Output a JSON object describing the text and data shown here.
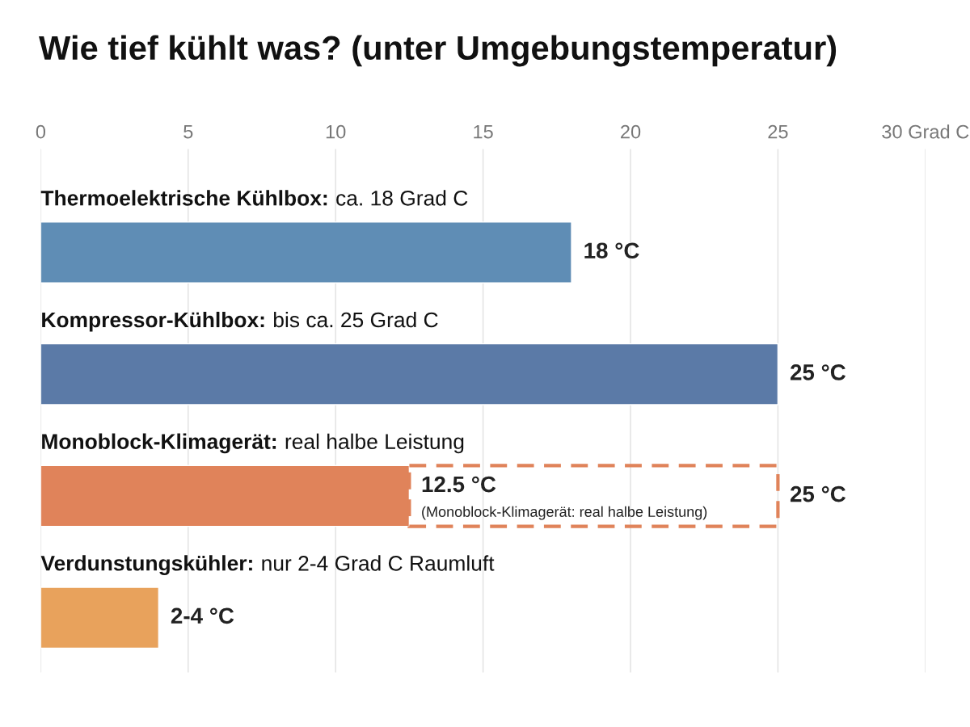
{
  "chart_data": {
    "type": "bar",
    "orientation": "horizontal",
    "stacked": true,
    "title": "Wie tief kühlt was? (unter Umgebungstemperatur)",
    "categories": [
      "Thermoelektrische Kühlbox: ca. 18 Grad C",
      "Kompressor-Kühlbox: bis ca. 25 Grad C",
      "Monoblock-Klimagerät: real halbe Leistung",
      "Verdunstungskühler: nur 2-4 Grad C Raumluft"
    ],
    "series": [
      {
        "colors": [
          "#5f8db5",
          "#5b7aa7",
          "#e0835a",
          "#e8a25c"
        ],
        "values": [
          18,
          25,
          12.5,
          4
        ],
        "value_labels": [
          "18 °C",
          "25 °C",
          "12.5 °C",
          "2-4 °C"
        ]
      },
      {
        "color": "#e0835a",
        "line_style": "dashed",
        "values": [
          null,
          null,
          12.5,
          null
        ]
      }
    ],
    "totals": [
      null,
      null,
      "25 °C",
      null
    ],
    "annotations": [
      {
        "text": "(Monoblock-Klimagerät: real halbe Leistung)",
        "x": 12.5,
        "y": "Monoblock-Klimagerät: real halbe Leistung"
      }
    ],
    "xlim": [
      0,
      30
    ],
    "xticks": [
      0,
      5,
      10,
      15,
      20,
      25,
      {
        "value": 30,
        "label": "30 Grad C"
      }
    ],
    "grid": "x",
    "legend": false
  }
}
